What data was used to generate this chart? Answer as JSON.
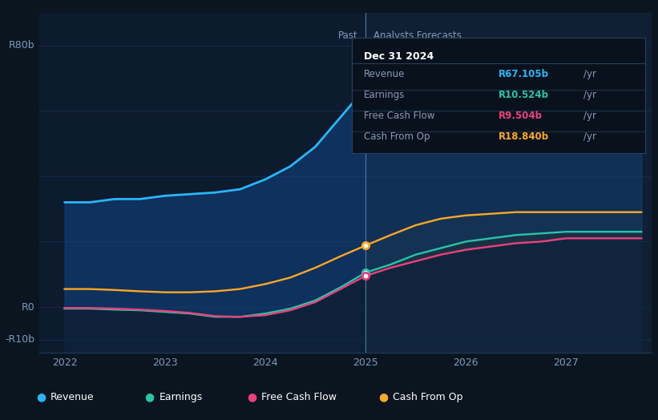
{
  "bg_color": "#0b1520",
  "plot_bg_color": "#0d1b2e",
  "grid_color": "#1e3a5f",
  "divider_x": 2025.0,
  "past_label": "Past",
  "forecast_label": "Analysts Forecasts",
  "ylim": [
    -14,
    90
  ],
  "xlim": [
    2021.75,
    2027.85
  ],
  "ytick_vals": [
    -10,
    0,
    20,
    40,
    60,
    80
  ],
  "ytick_labels": [
    "-R10b",
    "R0",
    "",
    "",
    "",
    "R80b"
  ],
  "xticks": [
    2022,
    2023,
    2024,
    2025,
    2026,
    2027
  ],
  "revenue": {
    "x": [
      2022.0,
      2022.25,
      2022.5,
      2022.75,
      2023.0,
      2023.25,
      2023.5,
      2023.75,
      2024.0,
      2024.25,
      2024.5,
      2024.75,
      2025.0,
      2025.25,
      2025.5,
      2025.75,
      2026.0,
      2026.25,
      2026.5,
      2026.75,
      2027.0,
      2027.25,
      2027.5,
      2027.75
    ],
    "y": [
      32,
      32,
      33,
      33,
      34,
      34.5,
      35,
      36,
      39,
      43,
      49,
      58,
      67,
      72,
      76,
      78,
      79,
      80,
      80,
      80,
      79.5,
      79,
      78.5,
      78
    ],
    "color": "#29b6f6",
    "marker_x": 2025.0,
    "marker_y": 67,
    "label": "Revenue"
  },
  "cash_from_op": {
    "x": [
      2022.0,
      2022.25,
      2022.5,
      2022.75,
      2023.0,
      2023.25,
      2023.5,
      2023.75,
      2024.0,
      2024.25,
      2024.5,
      2024.75,
      2025.0,
      2025.25,
      2025.5,
      2025.75,
      2026.0,
      2026.25,
      2026.5,
      2026.75,
      2027.0,
      2027.25,
      2027.5,
      2027.75
    ],
    "y": [
      5.5,
      5.5,
      5.2,
      4.8,
      4.5,
      4.5,
      4.8,
      5.5,
      7.0,
      9.0,
      12,
      15.5,
      18.8,
      22,
      25,
      27,
      28,
      28.5,
      29,
      29,
      29,
      29,
      29,
      29
    ],
    "color": "#ffa726",
    "marker_x": 2025.0,
    "marker_y": 18.8,
    "label": "Cash From Op"
  },
  "earnings": {
    "x": [
      2022.0,
      2022.25,
      2022.5,
      2022.75,
      2023.0,
      2023.25,
      2023.5,
      2023.75,
      2024.0,
      2024.25,
      2024.5,
      2024.75,
      2025.0,
      2025.25,
      2025.5,
      2025.75,
      2026.0,
      2026.25,
      2026.5,
      2026.75,
      2027.0,
      2027.25,
      2027.5,
      2027.75
    ],
    "y": [
      -0.5,
      -0.5,
      -0.8,
      -1.0,
      -1.5,
      -2.0,
      -3.0,
      -3.0,
      -2.0,
      -0.5,
      2.0,
      6.0,
      10.5,
      13,
      16,
      18,
      20,
      21,
      22,
      22.5,
      23,
      23,
      23,
      23
    ],
    "color": "#26c6a8",
    "marker_x": 2025.0,
    "marker_y": 10.5,
    "label": "Earnings"
  },
  "free_cash_flow": {
    "x": [
      2022.0,
      2022.25,
      2022.5,
      2022.75,
      2023.0,
      2023.25,
      2023.5,
      2023.75,
      2024.0,
      2024.25,
      2024.5,
      2024.75,
      2025.0,
      2025.25,
      2025.5,
      2025.75,
      2026.0,
      2026.25,
      2026.5,
      2026.75,
      2027.0,
      2027.25,
      2027.5,
      2027.75
    ],
    "y": [
      -0.3,
      -0.3,
      -0.5,
      -0.8,
      -1.2,
      -1.8,
      -2.8,
      -3.0,
      -2.5,
      -1.0,
      1.5,
      5.5,
      9.5,
      12,
      14,
      16,
      17.5,
      18.5,
      19.5,
      20,
      21,
      21,
      21,
      21
    ],
    "color": "#ec407a",
    "marker_x": 2025.0,
    "marker_y": 9.5,
    "label": "Free Cash Flow"
  },
  "tooltip": {
    "title": "Dec 31 2024",
    "rows": [
      {
        "label": "Revenue",
        "value": "R67.105b",
        "unit": "/yr",
        "color": "#29b6f6"
      },
      {
        "label": "Earnings",
        "value": "R10.524b",
        "unit": "/yr",
        "color": "#26c6a8"
      },
      {
        "label": "Free Cash Flow",
        "value": "R9.504b",
        "unit": "/yr",
        "color": "#ec407a"
      },
      {
        "label": "Cash From Op",
        "value": "R18.840b",
        "unit": "/yr",
        "color": "#ffa726"
      }
    ]
  }
}
